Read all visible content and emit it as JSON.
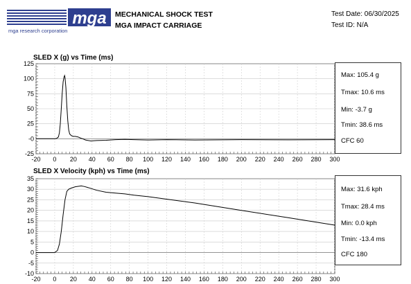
{
  "header": {
    "logo_text": "mga",
    "logo_subtext": "mga research corporation",
    "title_line1": "MECHANICAL SHOCK TEST",
    "title_line2": "MGA IMPACT CARRIAGE",
    "test_date": "Test Date: 06/30/2025",
    "test_id": "Test ID: N/A"
  },
  "chart_data": [
    {
      "type": "line",
      "title": "SLED X (g) vs Time (ms)",
      "xlim": [
        -20,
        300
      ],
      "ylim": [
        -25,
        125
      ],
      "x_ticks": [
        -20,
        0,
        20,
        40,
        60,
        80,
        100,
        120,
        140,
        160,
        180,
        200,
        220,
        240,
        260,
        280,
        300
      ],
      "y_ticks": [
        -25,
        0,
        25,
        50,
        75,
        100,
        125
      ],
      "y_tick_labels": [
        "-25",
        "-0",
        "25",
        "50",
        "75",
        "100",
        "125"
      ],
      "grid": true,
      "series": [
        {
          "x": [
            -20,
            0,
            2,
            4,
            5,
            6,
            7,
            8,
            9,
            10,
            10.6,
            11,
            12,
            13,
            14,
            15,
            16,
            18,
            20,
            22,
            25,
            28,
            30,
            33,
            38.6,
            45,
            55,
            65,
            75,
            85,
            100,
            120,
            150,
            200,
            250,
            300
          ],
          "y": [
            0,
            0,
            0.5,
            3,
            10,
            25,
            50,
            75,
            95,
            103,
            105.4,
            102,
            85,
            55,
            30,
            15,
            8,
            5,
            4,
            4,
            3,
            1,
            0,
            -2,
            -3.7,
            -3,
            -2.5,
            -1.5,
            -1,
            -1.5,
            -2,
            -1.5,
            -2,
            -1.5,
            -1.8,
            -1.5
          ]
        }
      ],
      "stats": {
        "max": "Max: 105.4 g",
        "tmax": "Tmax: 10.6 ms",
        "min": "Min: -3.7 g",
        "tmin": "Tmin: 38.6 ms",
        "cfc": "CFC 60"
      }
    },
    {
      "type": "line",
      "title": "SLED X Velocity (kph) vs Time (ms)",
      "xlim": [
        -20,
        300
      ],
      "ylim": [
        -10,
        35
      ],
      "x_ticks": [
        -20,
        0,
        20,
        40,
        60,
        80,
        100,
        120,
        140,
        160,
        180,
        200,
        220,
        240,
        260,
        280,
        300
      ],
      "y_ticks": [
        -10,
        -5,
        0,
        5,
        10,
        15,
        20,
        25,
        30,
        35
      ],
      "y_tick_labels": [
        "-10",
        "-5",
        "0",
        "5",
        "10",
        "15",
        "20",
        "25",
        "30",
        "35"
      ],
      "grid": true,
      "series": [
        {
          "x": [
            -20,
            0,
            3,
            5,
            7,
            9,
            11,
            13,
            15,
            18,
            22,
            28.4,
            32,
            38,
            45,
            55,
            65,
            75,
            85,
            100,
            150,
            200,
            250,
            300
          ],
          "y": [
            0,
            0,
            1,
            4,
            10,
            18,
            25,
            29,
            30,
            30.6,
            31.2,
            31.6,
            31.3,
            30.5,
            29.5,
            28.6,
            28.2,
            27.8,
            27.2,
            26.5,
            23.5,
            20,
            16.5,
            13
          ]
        }
      ],
      "stats": {
        "max": "Max: 31.6 kph",
        "tmax": "Tmax: 28.4 ms",
        "min": "Min: 0.0 kph",
        "tmin": "Tmin: -13.4 ms",
        "cfc": "CFC 180"
      }
    }
  ]
}
